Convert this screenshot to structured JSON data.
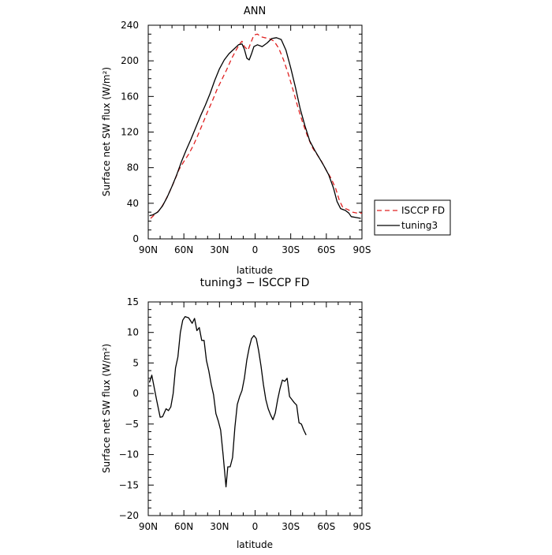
{
  "chart_data": [
    {
      "type": "line",
      "title": "ANN",
      "xlabel": "latitude",
      "ylabel": "Surface net SW flux (W/m²)",
      "xlim": [
        -90,
        90
      ],
      "ylim": [
        0,
        240
      ],
      "x_ticks": [
        {
          "value": -90,
          "label": "90N"
        },
        {
          "value": -60,
          "label": "60N"
        },
        {
          "value": -30,
          "label": "30N"
        },
        {
          "value": 0,
          "label": "0"
        },
        {
          "value": 30,
          "label": "30S"
        },
        {
          "value": 60,
          "label": "60S"
        },
        {
          "value": 90,
          "label": "90S"
        }
      ],
      "y_ticks": [
        0,
        40,
        80,
        120,
        160,
        200,
        240
      ],
      "legend_position": "outside-right",
      "series": [
        {
          "name": "ISCCP FD",
          "color": "#e02020",
          "dash": "dashed",
          "points": [
            [
              -88,
              23
            ],
            [
              -84,
              28
            ],
            [
              -80,
              33
            ],
            [
              -76,
              42
            ],
            [
              -72,
              53
            ],
            [
              -68,
              65
            ],
            [
              -64,
              78
            ],
            [
              -60,
              87
            ],
            [
              -56,
              95
            ],
            [
              -52,
              105
            ],
            [
              -48,
              117
            ],
            [
              -44,
              130
            ],
            [
              -40,
              143
            ],
            [
              -36,
              155
            ],
            [
              -32,
              168
            ],
            [
              -28,
              179
            ],
            [
              -24,
              190
            ],
            [
              -20,
              202
            ],
            [
              -16,
              212
            ],
            [
              -13,
              219
            ],
            [
              -11,
              222
            ],
            [
              -9,
              216
            ],
            [
              -6,
              212
            ],
            [
              -4,
              219
            ],
            [
              -1,
              229
            ],
            [
              2,
              230
            ],
            [
              5,
              227
            ],
            [
              8,
              226
            ],
            [
              12,
              225
            ],
            [
              16,
              222
            ],
            [
              20,
              214
            ],
            [
              24,
              201
            ],
            [
              28,
              185
            ],
            [
              32,
              167
            ],
            [
              36,
              148
            ],
            [
              40,
              131
            ],
            [
              44,
              116
            ],
            [
              48,
              103
            ],
            [
              52,
              95
            ],
            [
              56,
              87
            ],
            [
              60,
              77
            ],
            [
              64,
              68
            ],
            [
              68,
              56
            ],
            [
              71,
              43
            ],
            [
              74,
              35
            ],
            [
              78,
              33
            ],
            [
              82,
              30
            ],
            [
              86,
              29
            ],
            [
              90,
              29
            ]
          ]
        },
        {
          "name": "tuning3",
          "color": "#000000",
          "dash": "solid",
          "points": [
            [
              -89,
              26
            ],
            [
              -86,
              27
            ],
            [
              -82,
              30
            ],
            [
              -78,
              37
            ],
            [
              -74,
              47
            ],
            [
              -70,
              59
            ],
            [
              -66,
              72
            ],
            [
              -62,
              87
            ],
            [
              -58,
              100
            ],
            [
              -54,
              112
            ],
            [
              -50,
              125
            ],
            [
              -46,
              138
            ],
            [
              -42,
              150
            ],
            [
              -38,
              163
            ],
            [
              -34,
              178
            ],
            [
              -30,
              191
            ],
            [
              -26,
              201
            ],
            [
              -22,
              208
            ],
            [
              -18,
              213
            ],
            [
              -14,
              218
            ],
            [
              -11,
              219
            ],
            [
              -9,
              213
            ],
            [
              -7,
              203
            ],
            [
              -5,
              201
            ],
            [
              -3,
              208
            ],
            [
              -1,
              216
            ],
            [
              2,
              218
            ],
            [
              6,
              216
            ],
            [
              10,
              220
            ],
            [
              14,
              225
            ],
            [
              18,
              226
            ],
            [
              22,
              224
            ],
            [
              26,
              212
            ],
            [
              30,
              192
            ],
            [
              34,
              170
            ],
            [
              38,
              146
            ],
            [
              42,
              127
            ],
            [
              46,
              110
            ],
            [
              50,
              100
            ],
            [
              54,
              91
            ],
            [
              58,
              82
            ],
            [
              62,
              72
            ],
            [
              66,
              57
            ],
            [
              69,
              42
            ],
            [
              72,
              34
            ],
            [
              76,
              32
            ],
            [
              79,
              29
            ],
            [
              81,
              25
            ],
            [
              85,
              24
            ],
            [
              89,
              23
            ]
          ]
        }
      ]
    },
    {
      "type": "line",
      "title": "tuning3 − ISCCP FD",
      "xlabel": "latitude",
      "ylabel": "Surface net SW flux (W/m²)",
      "xlim": [
        -90,
        90
      ],
      "ylim": [
        -20,
        15
      ],
      "x_ticks": [
        {
          "value": -90,
          "label": "90N"
        },
        {
          "value": -60,
          "label": "60N"
        },
        {
          "value": -30,
          "label": "30N"
        },
        {
          "value": 0,
          "label": "0"
        },
        {
          "value": 30,
          "label": "30S"
        },
        {
          "value": 60,
          "label": "60S"
        },
        {
          "value": 90,
          "label": "90S"
        }
      ],
      "y_ticks": [
        -20,
        -15,
        -10,
        -5,
        0,
        5,
        10,
        15
      ],
      "series": [
        {
          "name": "",
          "color": "#000000",
          "dash": "solid",
          "points": [
            [
              -89,
              1.8
            ],
            [
              -87,
              3.0
            ],
            [
              -83,
              -1.0
            ],
            [
              -80,
              -3.9
            ],
            [
              -78,
              -3.8
            ],
            [
              -75,
              -2.5
            ],
            [
              -73,
              -2.8
            ],
            [
              -71,
              -2.2
            ],
            [
              -69,
              0.0
            ],
            [
              -67,
              4.2
            ],
            [
              -65,
              6.0
            ],
            [
              -63,
              10.0
            ],
            [
              -61,
              12.0
            ],
            [
              -59,
              12.6
            ],
            [
              -56,
              12.4
            ],
            [
              -53,
              11.5
            ],
            [
              -51,
              12.3
            ],
            [
              -49,
              10.3
            ],
            [
              -47,
              10.8
            ],
            [
              -45,
              8.7
            ],
            [
              -43,
              8.7
            ],
            [
              -41,
              5.4
            ],
            [
              -39,
              3.7
            ],
            [
              -37,
              1.5
            ],
            [
              -35,
              -0.2
            ],
            [
              -33,
              -3.3
            ],
            [
              -31,
              -4.5
            ],
            [
              -29,
              -6.0
            ],
            [
              -27,
              -10.0
            ],
            [
              -24.5,
              -15.3
            ],
            [
              -23,
              -12.0
            ],
            [
              -21,
              -12.0
            ],
            [
              -19,
              -10.5
            ],
            [
              -17,
              -5.5
            ],
            [
              -15,
              -1.8
            ],
            [
              -13,
              -0.5
            ],
            [
              -11,
              0.5
            ],
            [
              -9,
              2.5
            ],
            [
              -7,
              5.5
            ],
            [
              -5,
              7.5
            ],
            [
              -3,
              9.0
            ],
            [
              -1,
              9.5
            ],
            [
              1,
              9.0
            ],
            [
              3,
              7.0
            ],
            [
              5,
              4.5
            ],
            [
              7,
              1.5
            ],
            [
              9,
              -1.0
            ],
            [
              11,
              -2.5
            ],
            [
              13,
              -3.5
            ],
            [
              15,
              -4.3
            ],
            [
              17,
              -3.2
            ],
            [
              19,
              -1.0
            ],
            [
              21,
              0.8
            ],
            [
              23,
              2.2
            ],
            [
              25,
              2.0
            ],
            [
              27,
              2.5
            ],
            [
              29,
              -0.5
            ],
            [
              31,
              -1.0
            ],
            [
              33,
              -1.5
            ],
            [
              35,
              -1.9
            ],
            [
              37,
              -4.8
            ],
            [
              39,
              -5.0
            ],
            [
              41,
              -6.0
            ],
            [
              43,
              -6.8
            ]
          ]
        }
      ]
    }
  ]
}
